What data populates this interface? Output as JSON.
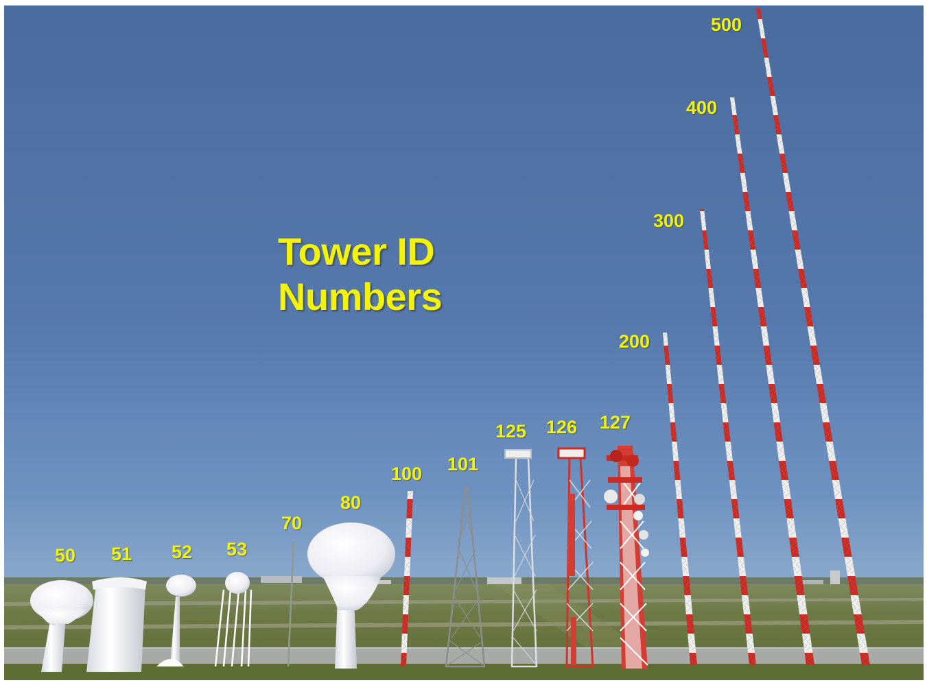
{
  "title": {
    "line1": "Tower ID",
    "line2": "Numbers"
  },
  "towers": [
    {
      "id": "50",
      "kind": "water-tank"
    },
    {
      "id": "51",
      "kind": "water-tank"
    },
    {
      "id": "52",
      "kind": "water-tank"
    },
    {
      "id": "53",
      "kind": "water-tank"
    },
    {
      "id": "70",
      "kind": "thin-mast"
    },
    {
      "id": "80",
      "kind": "water-tank"
    },
    {
      "id": "100",
      "kind": "red-white-mast"
    },
    {
      "id": "101",
      "kind": "lattice-tower"
    },
    {
      "id": "125",
      "kind": "lattice-tower"
    },
    {
      "id": "126",
      "kind": "red-white-lattice-tower"
    },
    {
      "id": "127",
      "kind": "cell-tower"
    },
    {
      "id": "200",
      "kind": "red-white-mast"
    },
    {
      "id": "300",
      "kind": "red-white-mast"
    },
    {
      "id": "400",
      "kind": "red-white-mast"
    },
    {
      "id": "500",
      "kind": "red-white-mast"
    }
  ],
  "colors": {
    "label": "#f2f20a",
    "sky_top": "#4e6fa0",
    "sky_horizon": "#7a9cc4",
    "ground": "#6f7a48",
    "runway": "#a9acab",
    "mast_red": "#cc2a22",
    "mast_white": "#f2f2f2"
  }
}
